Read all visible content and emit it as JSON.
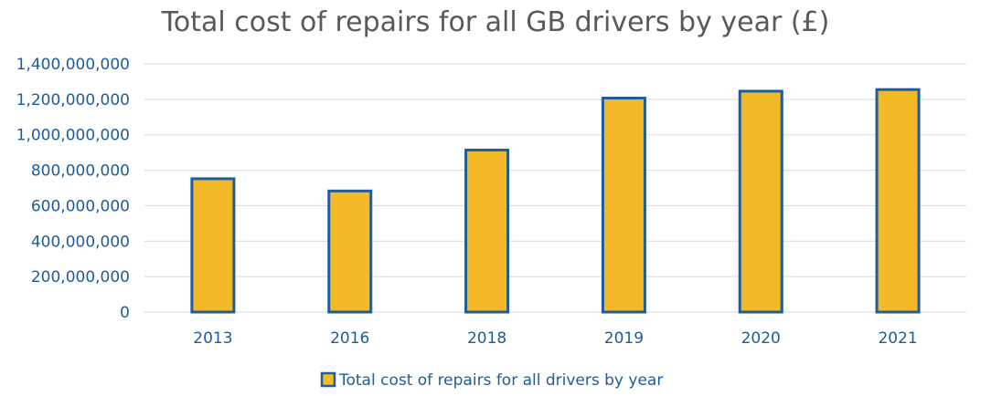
{
  "chart_data": {
    "type": "bar",
    "title": "Total cost of repairs for all GB drivers by year (£)",
    "categories": [
      "2013",
      "2016",
      "2018",
      "2019",
      "2020",
      "2021"
    ],
    "series": [
      {
        "name": "Total cost of repairs for all drivers by year",
        "values": [
          752000000,
          683000000,
          914000000,
          1207000000,
          1246000000,
          1255000000
        ]
      }
    ],
    "ylim": [
      0,
      1400000000
    ],
    "yticks": [
      0,
      200000000,
      400000000,
      600000000,
      800000000,
      1000000000,
      1200000000,
      1400000000
    ],
    "ytick_labels": [
      "0",
      "200,000,000",
      "400,000,000",
      "600,000,000",
      "800,000,000",
      "1,000,000,000",
      "1,200,000,000",
      "1,400,000,000"
    ],
    "grid": true,
    "legend_position": "bottom",
    "colors": {
      "bar_fill": "#F4B926",
      "bar_stroke": "#1F5C99",
      "grid": "#D9D9D9",
      "text": "#1F5C99",
      "title": "#595959"
    }
  }
}
